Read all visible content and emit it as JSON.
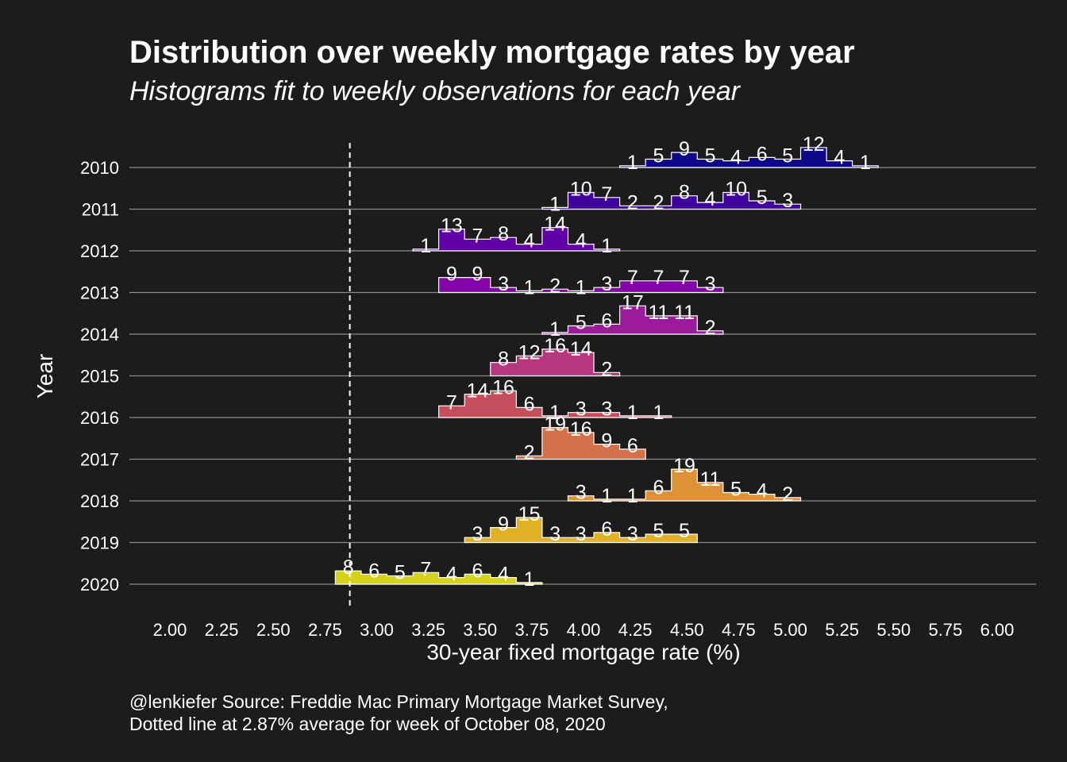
{
  "title": "Distribution over weekly mortgage rates by year",
  "subtitle": "Histograms fit to weekly observations for each year",
  "caption": {
    "line1": "@lenkiefer Source: Freddie Mac Primary Mortgage Market Survey,",
    "line2": "Dotted line at 2.87% average for week of October 08, 2020"
  },
  "chart_data": {
    "type": "histogram-ridgeline",
    "xlabel": "30-year fixed mortgage rate (%)",
    "ylabel": "Year",
    "xlim": [
      2.0,
      6.0
    ],
    "x_ticks": [
      "2.00",
      "2.25",
      "2.50",
      "2.75",
      "3.00",
      "3.25",
      "3.50",
      "3.75",
      "4.00",
      "4.25",
      "4.50",
      "4.75",
      "5.00",
      "5.25",
      "5.50",
      "5.75",
      "6.00"
    ],
    "bin_width": 0.125,
    "reference_line": 2.87,
    "series": [
      {
        "name": "2010",
        "color": "#0d0887",
        "start": 4.175,
        "counts": [
          1,
          5,
          9,
          5,
          4,
          6,
          5,
          12,
          4,
          1
        ]
      },
      {
        "name": "2011",
        "color": "#3f04a0",
        "start": 3.8,
        "counts": [
          1,
          10,
          7,
          2,
          2,
          8,
          4,
          10,
          5,
          3
        ]
      },
      {
        "name": "2012",
        "color": "#6200a7",
        "start": 3.175,
        "counts": [
          1,
          13,
          7,
          8,
          4,
          14,
          4,
          1
        ]
      },
      {
        "name": "2013",
        "color": "#8305a7",
        "start": 3.3,
        "counts": [
          9,
          9,
          3,
          1,
          2,
          1,
          3,
          7,
          7,
          7,
          3
        ]
      },
      {
        "name": "2014",
        "color": "#9c1b9b",
        "start": 3.8,
        "counts": [
          1,
          5,
          6,
          17,
          11,
          11,
          2
        ]
      },
      {
        "name": "2015",
        "color": "#b5377d",
        "start": 3.55,
        "counts": [
          8,
          12,
          16,
          14,
          2
        ]
      },
      {
        "name": "2016",
        "color": "#c54e5c",
        "start": 3.3,
        "counts": [
          7,
          14,
          16,
          6,
          1,
          3,
          3,
          1,
          1
        ]
      },
      {
        "name": "2017",
        "color": "#d4704a",
        "start": 3.675,
        "counts": [
          2,
          19,
          16,
          9,
          6
        ]
      },
      {
        "name": "2018",
        "color": "#de9135",
        "start": 3.925,
        "counts": [
          3,
          1,
          1,
          6,
          19,
          11,
          5,
          4,
          2
        ]
      },
      {
        "name": "2019",
        "color": "#dfb226",
        "start": 3.425,
        "counts": [
          3,
          9,
          15,
          3,
          3,
          6,
          3,
          5,
          5
        ]
      },
      {
        "name": "2020",
        "color": "#d5d21c",
        "start": 2.8,
        "counts": [
          8,
          6,
          5,
          7,
          4,
          6,
          4,
          1
        ]
      }
    ]
  }
}
